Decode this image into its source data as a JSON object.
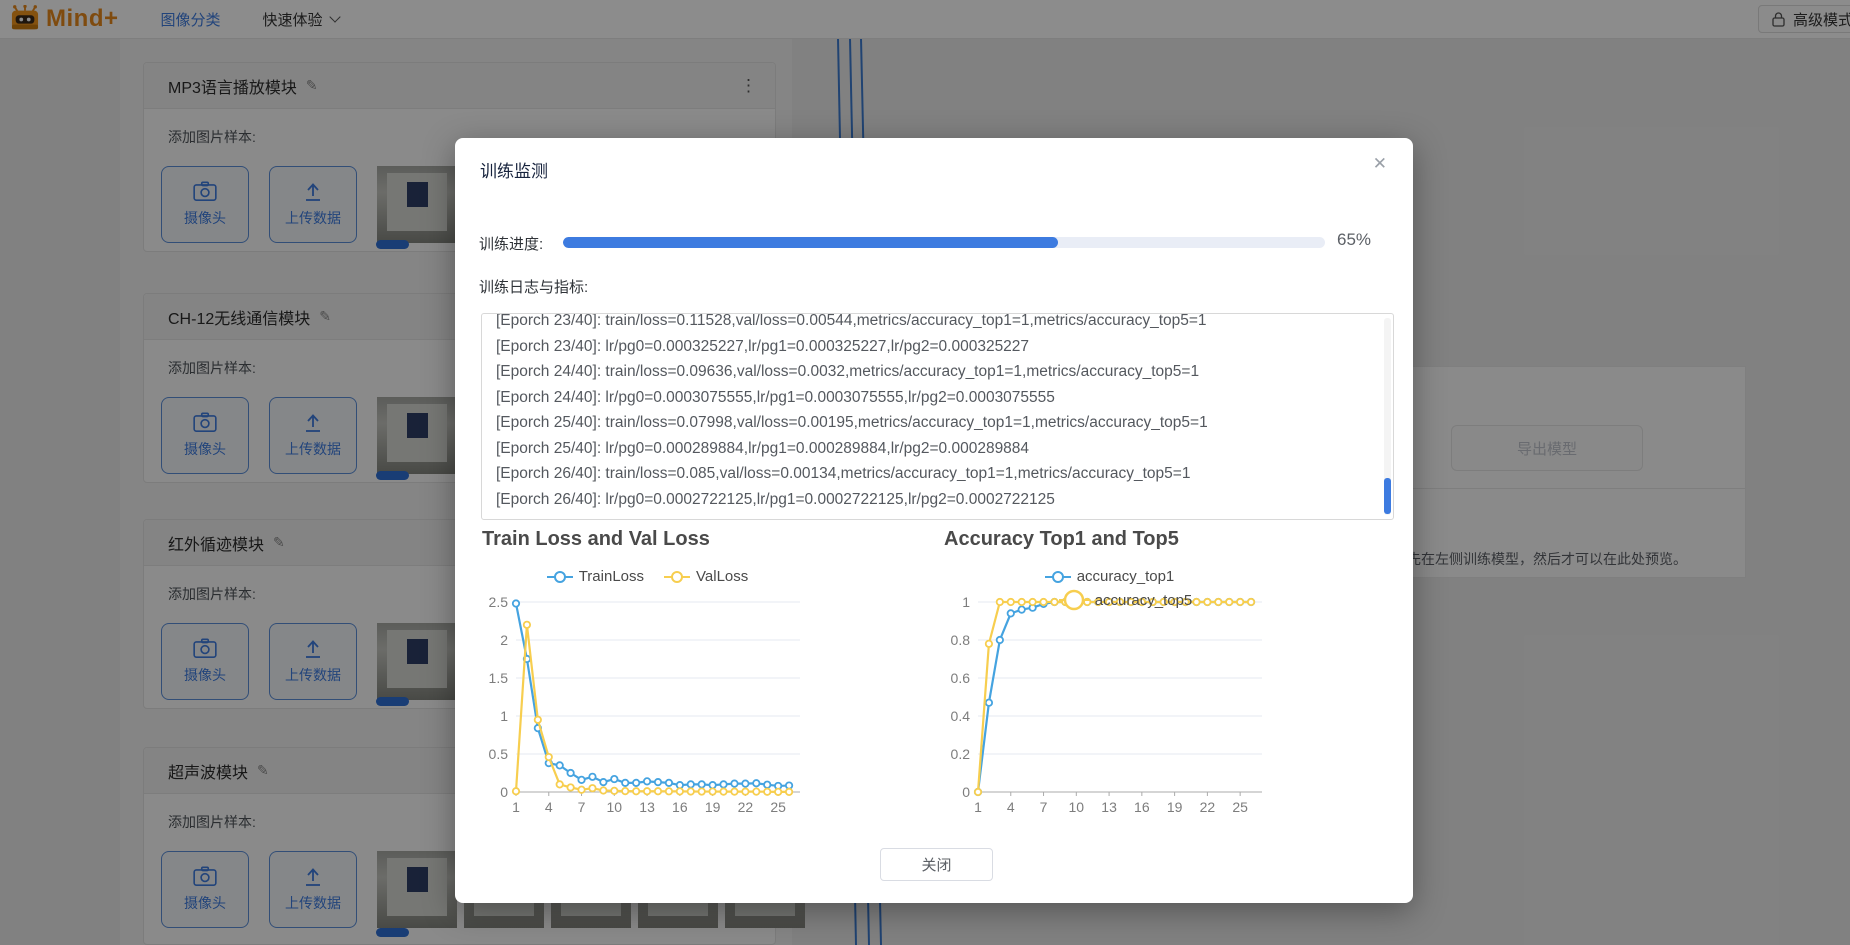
{
  "topbar": {
    "brand": "Mind+",
    "nav_classify": "图像分类",
    "nav_experience": "快速体验",
    "advanced_mode": "高级模式"
  },
  "icons": {
    "edit": "✎",
    "kebab": "⋮",
    "close": "✕"
  },
  "sidebar": {
    "add_sample_label": "添加图片样本:",
    "camera_label": "摄像头",
    "upload_label": "上传数据",
    "cards": [
      {
        "title": "MP3语言播放模块"
      },
      {
        "title": "CH-12无线通信模块"
      },
      {
        "title": "红外循迹模块"
      },
      {
        "title": "超声波模块"
      }
    ]
  },
  "right_panel": {
    "export_button": "导出模型",
    "preview_hint": "先在左侧训练模型，然后才可以在此处预览。"
  },
  "modal": {
    "title": "训练监测",
    "progress_label": "训练进度:",
    "progress_value": 65,
    "progress_percent": "65%",
    "logs_label": "训练日志与指标:",
    "log_lines": [
      "[Eporch 23/40]: train/loss=0.11528,val/loss=0.00544,metrics/accuracy_top1=1,metrics/accuracy_top5=1",
      "[Eporch 23/40]: lr/pg0=0.000325227,lr/pg1=0.000325227,lr/pg2=0.000325227",
      "[Eporch 24/40]: train/loss=0.09636,val/loss=0.0032,metrics/accuracy_top1=1,metrics/accuracy_top5=1",
      "[Eporch 24/40]: lr/pg0=0.0003075555,lr/pg1=0.0003075555,lr/pg2=0.0003075555",
      "[Eporch 25/40]: train/loss=0.07998,val/loss=0.00195,metrics/accuracy_top1=1,metrics/accuracy_top5=1",
      "[Eporch 25/40]: lr/pg0=0.000289884,lr/pg1=0.000289884,lr/pg2=0.000289884",
      "[Eporch 26/40]: train/loss=0.085,val/loss=0.00134,metrics/accuracy_top1=1,metrics/accuracy_top5=1",
      "[Eporch 26/40]: lr/pg0=0.0002722125,lr/pg1=0.0002722125,lr/pg2=0.0002722125"
    ],
    "close_button": "关闭"
  },
  "chart_data": [
    {
      "type": "line",
      "title": "Train Loss and Val Loss",
      "xlabel": "",
      "ylabel": "",
      "x": [
        1,
        2,
        3,
        4,
        5,
        6,
        7,
        8,
        9,
        10,
        11,
        12,
        13,
        14,
        15,
        16,
        17,
        18,
        19,
        20,
        21,
        22,
        23,
        24,
        25,
        26
      ],
      "xticks": [
        1,
        4,
        7,
        10,
        13,
        16,
        19,
        22,
        25
      ],
      "yticks": [
        0,
        0.5,
        1,
        1.5,
        2,
        2.5
      ],
      "ylim": [
        0,
        2.5
      ],
      "legend_layout": "row",
      "grid": true,
      "series": [
        {
          "name": "TrainLoss",
          "color": "#45a3e0",
          "values": [
            2.48,
            1.75,
            0.84,
            0.38,
            0.35,
            0.25,
            0.16,
            0.2,
            0.13,
            0.17,
            0.12,
            0.12,
            0.14,
            0.13,
            0.12,
            0.09,
            0.1,
            0.1,
            0.09,
            0.1,
            0.11,
            0.11,
            0.115,
            0.096,
            0.08,
            0.085
          ]
        },
        {
          "name": "ValLoss",
          "color": "#f7ce4f",
          "values": [
            0.01,
            2.2,
            0.95,
            0.46,
            0.1,
            0.06,
            0.03,
            0.05,
            0.02,
            0.015,
            0.012,
            0.01,
            0.01,
            0.01,
            0.009,
            0.008,
            0.007,
            0.006,
            0.006,
            0.005,
            0.005,
            0.005,
            0.0054,
            0.0032,
            0.002,
            0.0013
          ]
        }
      ]
    },
    {
      "type": "line",
      "title": "Accuracy Top1 and Top5",
      "xlabel": "",
      "ylabel": "",
      "x": [
        1,
        2,
        3,
        4,
        5,
        6,
        7,
        8,
        9,
        10,
        11,
        12,
        13,
        14,
        15,
        16,
        17,
        18,
        19,
        20,
        21,
        22,
        23,
        24,
        25,
        26
      ],
      "xticks": [
        1,
        4,
        7,
        10,
        13,
        16,
        19,
        22,
        25
      ],
      "yticks": [
        0,
        0.2,
        0.4,
        0.6,
        0.8,
        1
      ],
      "ylim": [
        0,
        1
      ],
      "legend_layout": "stacked",
      "grid": true,
      "series": [
        {
          "name": "accuracy_top1",
          "color": "#45a3e0",
          "values": [
            0,
            0.47,
            0.8,
            0.94,
            0.96,
            0.97,
            0.99,
            1,
            1,
            1,
            1,
            1,
            1,
            1,
            1,
            1,
            1,
            1,
            1,
            1,
            1,
            1,
            1,
            1,
            1,
            1
          ]
        },
        {
          "name": "accuracy_top5",
          "color": "#f7ce4f",
          "values": [
            0,
            0.78,
            1,
            1,
            1,
            1,
            1,
            1,
            1,
            1,
            1,
            1,
            1,
            1,
            1,
            1,
            1,
            1,
            1,
            1,
            1,
            1,
            1,
            1,
            1,
            1
          ]
        }
      ]
    }
  ],
  "colors": {
    "accent_blue": "#3d7be0",
    "chart_blue": "#45a3e0",
    "chart_yellow": "#f7ce4f",
    "brand_orange": "#e8891c"
  }
}
